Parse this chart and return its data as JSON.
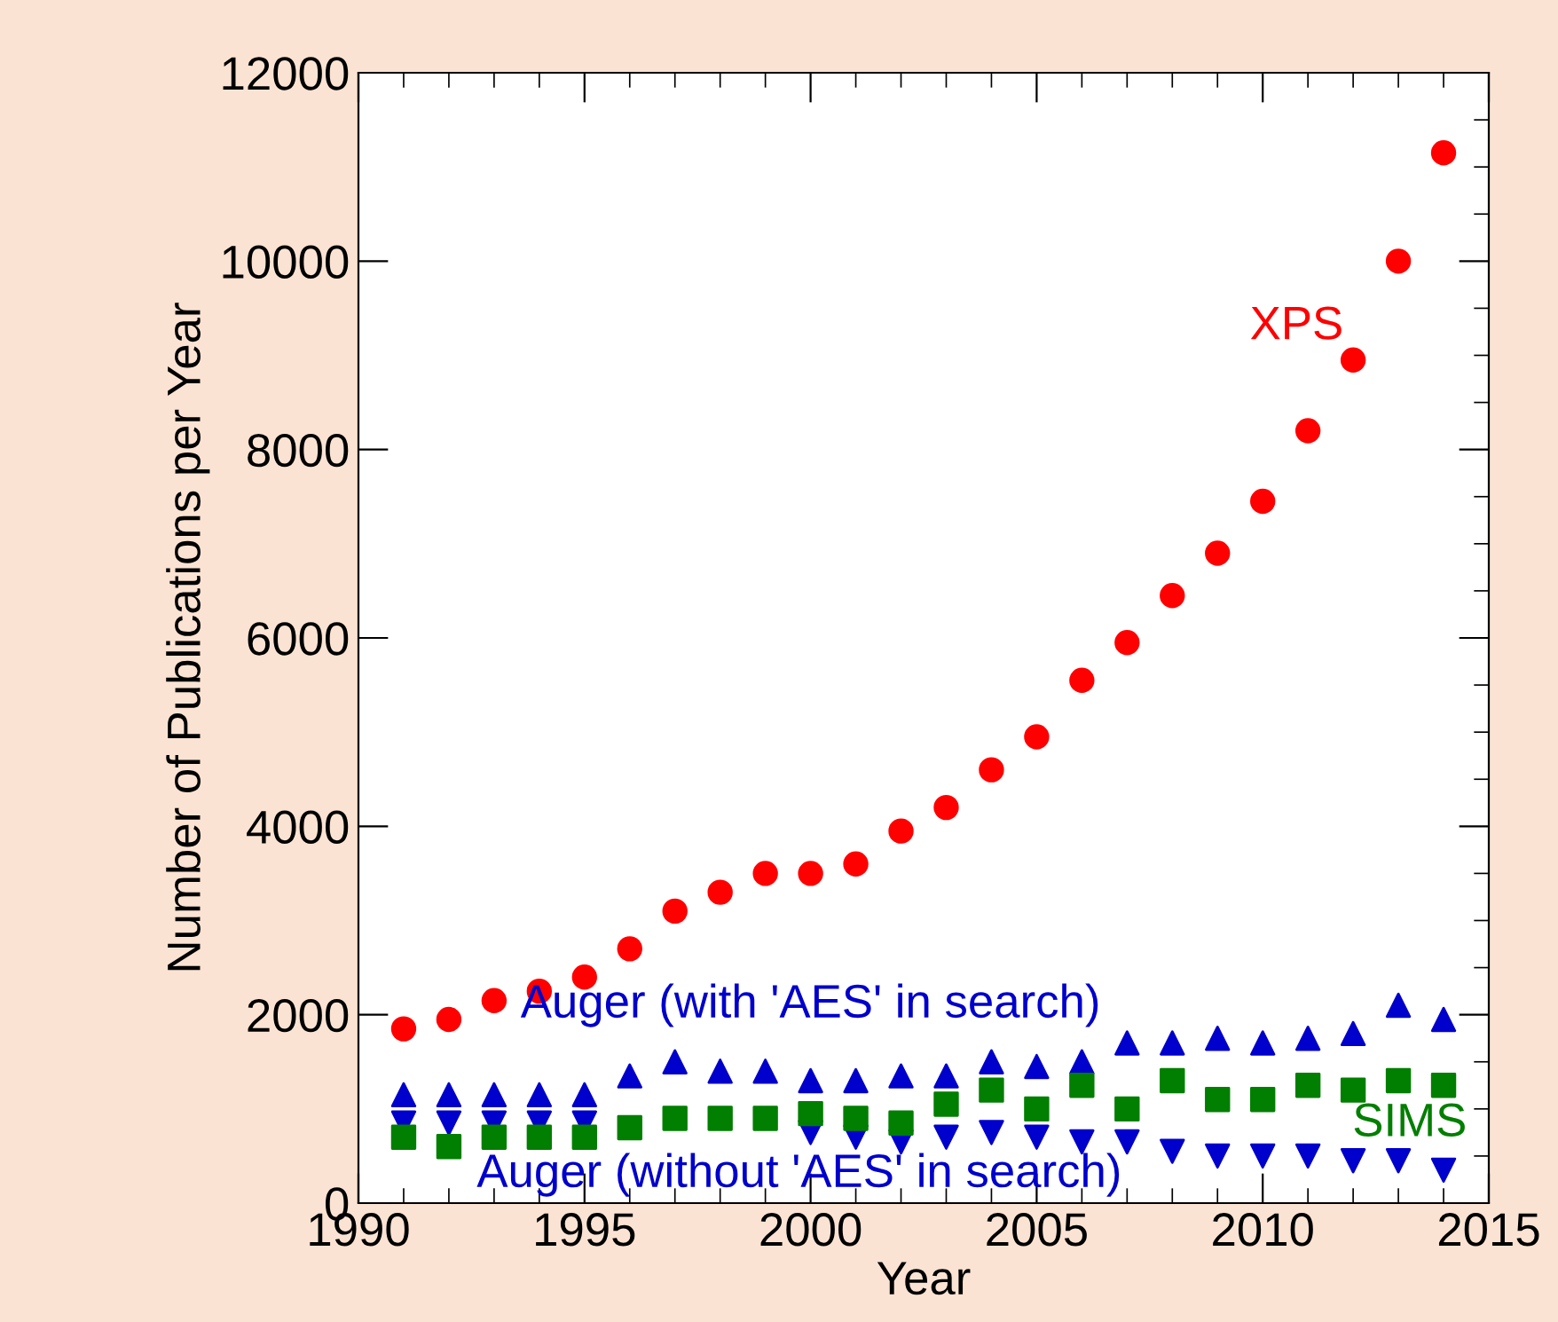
{
  "chart_data": {
    "type": "scatter",
    "xlabel": "Year",
    "ylabel": "Number of Publications per Year",
    "x": [
      1991,
      1992,
      1993,
      1994,
      1995,
      1996,
      1997,
      1998,
      1999,
      2000,
      2001,
      2002,
      2003,
      2004,
      2005,
      2006,
      2007,
      2008,
      2009,
      2010,
      2011,
      2012,
      2013,
      2014
    ],
    "series": [
      {
        "name": "XPS",
        "color": "#ff0000",
        "marker": "circle",
        "values": [
          1850,
          1950,
          2150,
          2250,
          2400,
          2700,
          3100,
          3300,
          3500,
          3500,
          3600,
          3950,
          4200,
          4600,
          4950,
          5550,
          5950,
          6450,
          6900,
          7450,
          8200,
          8950,
          10000,
          11150
        ]
      },
      {
        "name": "Auger (with 'AES' in search)",
        "color": "#0000cc",
        "marker": "triangle",
        "values": [
          1150,
          1150,
          1150,
          1150,
          1150,
          1350,
          1500,
          1400,
          1400,
          1300,
          1300,
          1350,
          1350,
          1500,
          1450,
          1500,
          1700,
          1700,
          1750,
          1700,
          1750,
          1800,
          2100,
          1950
        ]
      },
      {
        "name": "Auger (without 'AES' in search)",
        "color": "#0000cc",
        "values": [
          850,
          850,
          850,
          850,
          850,
          null,
          null,
          null,
          null,
          750,
          700,
          650,
          700,
          750,
          700,
          650,
          650,
          550,
          500,
          500,
          500,
          450,
          450,
          350
        ]
      },
      {
        "name": "SIMS",
        "color": "#007f00",
        "marker": "square",
        "values": [
          700,
          600,
          700,
          700,
          700,
          800,
          900,
          900,
          900,
          950,
          900,
          850,
          1050,
          1200,
          1000,
          1250,
          1000,
          1300,
          1100,
          1100,
          1250,
          1200,
          1300,
          1250
        ]
      }
    ],
    "xlim": [
      1990,
      2015
    ],
    "xticks": [
      1990,
      1995,
      2000,
      2005,
      2010,
      2015
    ],
    "ylim": [
      0,
      12000
    ],
    "yticks": [
      0,
      2000,
      4000,
      6000,
      8000,
      10000,
      12000
    ],
    "legend": false
  }
}
